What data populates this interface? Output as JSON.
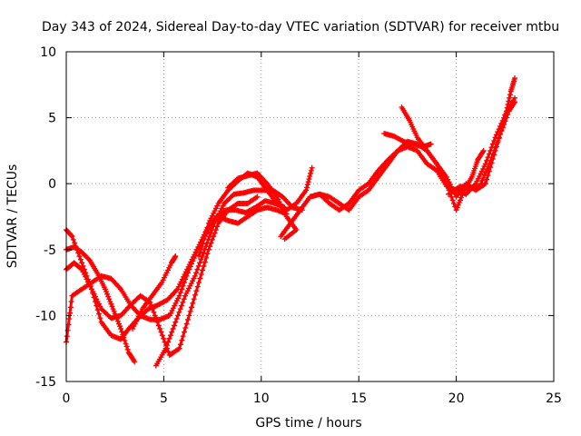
{
  "chart_data": {
    "type": "scatter",
    "title": "Day 343 of 2024, Sidereal Day-to-day VTEC variation (SDTVAR) for receiver mtbu",
    "xlabel": "GPS time / hours",
    "ylabel": "SDTVAR / TECUs",
    "xlim": [
      0,
      25
    ],
    "ylim": [
      -15,
      10
    ],
    "xticks": [
      0,
      5,
      10,
      15,
      20,
      25
    ],
    "yticks": [
      -15,
      -10,
      -5,
      0,
      5,
      10
    ],
    "grid": true,
    "marker": "plus",
    "series": [
      {
        "color": "#ff0000",
        "points": [
          [
            0.0,
            -3.5
          ],
          [
            0.3,
            -4.0
          ],
          [
            0.8,
            -6.0
          ],
          [
            1.3,
            -8.0
          ],
          [
            1.8,
            -10.5
          ],
          [
            2.3,
            -11.5
          ],
          [
            2.8,
            -11.8
          ],
          [
            3.2,
            -11.0
          ],
          [
            3.7,
            -10.2
          ],
          [
            4.2,
            -9.5
          ],
          [
            4.7,
            -9.2
          ],
          [
            5.2,
            -8.8
          ],
          [
            5.7,
            -8.0
          ],
          [
            6.2,
            -6.5
          ],
          [
            6.7,
            -5.0
          ],
          [
            7.2,
            -3.5
          ],
          [
            7.7,
            -2.5
          ],
          [
            8.2,
            -2.0
          ],
          [
            8.7,
            -2.0
          ],
          [
            9.2,
            -2.2
          ],
          [
            9.7,
            -1.8
          ],
          [
            10.2,
            -1.3
          ],
          [
            10.7,
            -1.5
          ],
          [
            11.2,
            -1.8
          ]
        ]
      },
      {
        "color": "#ff0000",
        "points": [
          [
            0.0,
            -12.0
          ],
          [
            0.3,
            -8.5
          ],
          [
            0.8,
            -8.0
          ],
          [
            1.3,
            -7.5
          ],
          [
            1.8,
            -7.0
          ],
          [
            2.3,
            -7.2
          ],
          [
            2.8,
            -8.0
          ],
          [
            3.3,
            -9.2
          ],
          [
            3.8,
            -10.0
          ],
          [
            4.3,
            -10.3
          ],
          [
            4.8,
            -10.3
          ],
          [
            5.3,
            -10.0
          ],
          [
            5.8,
            -8.5
          ],
          [
            6.3,
            -6.5
          ],
          [
            6.8,
            -4.8
          ],
          [
            7.3,
            -3.5
          ],
          [
            7.8,
            -2.5
          ],
          [
            8.3,
            -2.8
          ],
          [
            8.8,
            -3.0
          ],
          [
            9.3,
            -2.5
          ],
          [
            9.8,
            -2.0
          ],
          [
            10.3,
            -1.8
          ],
          [
            10.8,
            -2.0
          ],
          [
            11.3,
            -2.3
          ]
        ]
      },
      {
        "color": "#ff0000",
        "points": [
          [
            0.0,
            -6.5
          ],
          [
            0.4,
            -6.0
          ],
          [
            0.8,
            -6.5
          ],
          [
            1.3,
            -8.0
          ],
          [
            1.8,
            -9.5
          ],
          [
            2.3,
            -10.2
          ],
          [
            2.8,
            -10.0
          ],
          [
            3.3,
            -9.2
          ],
          [
            3.8,
            -8.5
          ],
          [
            4.3,
            -9.0
          ],
          [
            4.8,
            -11.0
          ],
          [
            5.3,
            -13.0
          ],
          [
            5.8,
            -12.5
          ],
          [
            6.3,
            -10.0
          ],
          [
            6.8,
            -7.5
          ],
          [
            7.3,
            -5.0
          ],
          [
            7.8,
            -3.0
          ],
          [
            8.3,
            -2.0
          ],
          [
            8.8,
            -1.5
          ],
          [
            9.3,
            -1.5
          ],
          [
            9.8,
            -1.0
          ]
        ]
      },
      {
        "color": "#ff0000",
        "points": [
          [
            0.0,
            -5.0
          ],
          [
            0.4,
            -4.8
          ],
          [
            0.8,
            -5.2
          ],
          [
            1.2,
            -5.8
          ],
          [
            1.6,
            -6.8
          ],
          [
            2.0,
            -8.0
          ],
          [
            2.4,
            -9.5
          ],
          [
            2.8,
            -11.0
          ],
          [
            3.2,
            -12.8
          ],
          [
            3.5,
            -13.5
          ]
        ]
      },
      {
        "color": "#ff0000",
        "points": [
          [
            4.6,
            -13.8
          ],
          [
            5.1,
            -12.5
          ],
          [
            5.6,
            -10.5
          ],
          [
            6.1,
            -8.5
          ],
          [
            6.6,
            -7.0
          ],
          [
            7.1,
            -5.0
          ],
          [
            7.6,
            -3.0
          ],
          [
            8.1,
            -1.5
          ],
          [
            8.6,
            -0.8
          ],
          [
            9.1,
            -0.7
          ],
          [
            9.6,
            -0.5
          ],
          [
            10.1,
            -0.5
          ],
          [
            10.6,
            -0.5
          ],
          [
            11.1,
            -1.0
          ],
          [
            11.6,
            -1.8
          ],
          [
            12.1,
            -2.0
          ]
        ]
      },
      {
        "color": "#ff0000",
        "points": [
          [
            3.4,
            -11.0
          ],
          [
            3.9,
            -9.5
          ],
          [
            4.4,
            -8.5
          ],
          [
            4.9,
            -7.5
          ],
          [
            5.4,
            -6.0
          ],
          [
            5.6,
            -5.5
          ]
        ]
      },
      {
        "color": "#ff0000",
        "points": [
          [
            6.8,
            -5.5
          ],
          [
            7.3,
            -3.0
          ],
          [
            7.8,
            -1.5
          ],
          [
            8.3,
            -0.5
          ],
          [
            8.8,
            0.2
          ],
          [
            9.3,
            0.8
          ],
          [
            9.8,
            0.5
          ],
          [
            10.3,
            -0.5
          ],
          [
            10.8,
            -1.5
          ],
          [
            11.3,
            -2.0
          ],
          [
            11.8,
            -1.5
          ],
          [
            12.3,
            -0.5
          ],
          [
            12.6,
            1.2
          ]
        ]
      },
      {
        "color": "#ff0000",
        "points": [
          [
            8.3,
            -0.3
          ],
          [
            8.8,
            0.4
          ],
          [
            9.3,
            0.6
          ],
          [
            9.8,
            0.8
          ],
          [
            10.3,
            0.0
          ],
          [
            10.8,
            -1.0
          ],
          [
            11.3,
            -2.5
          ],
          [
            11.8,
            -3.5
          ],
          [
            11.2,
            -4.2
          ]
        ]
      },
      {
        "color": "#ff0000",
        "points": [
          [
            11.0,
            -4.0
          ],
          [
            11.5,
            -3.0
          ],
          [
            12.0,
            -2.0
          ],
          [
            12.5,
            -1.0
          ],
          [
            13.0,
            -0.8
          ],
          [
            13.5,
            -1.0
          ],
          [
            14.0,
            -1.5
          ],
          [
            14.5,
            -2.0
          ],
          [
            15.0,
            -1.0
          ],
          [
            15.5,
            -0.5
          ],
          [
            16.0,
            0.5
          ],
          [
            16.5,
            1.5
          ],
          [
            17.0,
            2.5
          ],
          [
            17.5,
            3.2
          ],
          [
            18.0,
            3.0
          ],
          [
            18.5,
            2.5
          ],
          [
            19.0,
            1.5
          ],
          [
            19.5,
            0.0
          ],
          [
            20.0,
            -2.0
          ],
          [
            20.4,
            -0.5
          ],
          [
            20.8,
            0.5
          ],
          [
            21.1,
            1.8
          ],
          [
            21.4,
            2.5
          ]
        ]
      },
      {
        "color": "#ff0000",
        "points": [
          [
            12.5,
            -1.0
          ],
          [
            13.0,
            -0.8
          ],
          [
            13.5,
            -1.5
          ],
          [
            14.0,
            -2.0
          ],
          [
            14.5,
            -1.5
          ],
          [
            15.0,
            -0.5
          ],
          [
            15.5,
            0.0
          ],
          [
            16.0,
            1.0
          ],
          [
            16.5,
            1.8
          ],
          [
            17.0,
            2.5
          ],
          [
            17.5,
            2.8
          ],
          [
            18.0,
            2.5
          ],
          [
            18.5,
            1.5
          ],
          [
            19.0,
            1.0
          ],
          [
            19.5,
            -0.2
          ],
          [
            20.0,
            -0.5
          ],
          [
            20.5,
            -0.8
          ],
          [
            21.0,
            0.0
          ],
          [
            21.5,
            1.5
          ],
          [
            22.0,
            3.5
          ],
          [
            22.5,
            5.2
          ],
          [
            23.0,
            6.5
          ]
        ]
      },
      {
        "color": "#ff0000",
        "points": [
          [
            16.3,
            3.8
          ],
          [
            16.8,
            3.6
          ],
          [
            17.3,
            3.2
          ],
          [
            17.8,
            3.0
          ],
          [
            18.3,
            2.8
          ],
          [
            18.7,
            3.0
          ]
        ]
      },
      {
        "color": "#ff0000",
        "points": [
          [
            17.2,
            5.8
          ],
          [
            17.6,
            4.8
          ],
          [
            18.0,
            3.5
          ],
          [
            18.5,
            2.5
          ],
          [
            19.0,
            1.5
          ],
          [
            19.5,
            0.5
          ],
          [
            20.0,
            -1.0
          ],
          [
            20.5,
            0.0
          ],
          [
            21.0,
            -0.5
          ],
          [
            21.5,
            0.0
          ],
          [
            22.0,
            2.5
          ],
          [
            22.5,
            5.0
          ],
          [
            22.8,
            7.0
          ],
          [
            23.0,
            8.0
          ]
        ]
      },
      {
        "color": "#ff0000",
        "points": [
          [
            19.6,
            -0.8
          ],
          [
            20.2,
            -0.2
          ],
          [
            20.7,
            -0.4
          ],
          [
            21.2,
            -0.2
          ],
          [
            21.7,
            1.5
          ],
          [
            22.2,
            3.5
          ],
          [
            22.7,
            5.5
          ],
          [
            23.0,
            6.2
          ]
        ]
      }
    ]
  }
}
